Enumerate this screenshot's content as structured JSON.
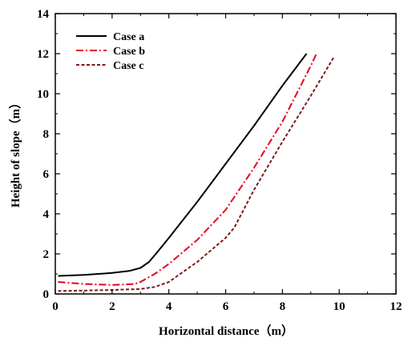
{
  "chart_data": {
    "type": "line",
    "xlabel": "Horizontal distance（m）",
    "ylabel": "Height of slope（m）",
    "xlim": [
      0,
      12
    ],
    "ylim": [
      0,
      14
    ],
    "xticks": [
      "0",
      "2",
      "4",
      "6",
      "8",
      "10",
      "12"
    ],
    "yticks": [
      "0",
      "2",
      "4",
      "6",
      "8",
      "10",
      "12",
      "14"
    ],
    "grid": false,
    "legend_position": "top-left",
    "series": [
      {
        "name": "Case a",
        "color": "#000000",
        "dash": "solid",
        "x": [
          0.1,
          1.0,
          2.0,
          2.6,
          3.0,
          3.3,
          3.6,
          4.0,
          5.0,
          6.0,
          7.0,
          8.0,
          8.85
        ],
        "y": [
          0.9,
          0.95,
          1.05,
          1.15,
          1.3,
          1.6,
          2.1,
          2.8,
          4.6,
          6.5,
          8.4,
          10.4,
          12.0
        ]
      },
      {
        "name": "Case b",
        "color": "#e8001c",
        "dash": "dashdot",
        "x": [
          0.1,
          1.0,
          2.0,
          2.8,
          3.0,
          3.5,
          4.0,
          5.0,
          6.0,
          7.0,
          8.0,
          9.0,
          9.2
        ],
        "y": [
          0.6,
          0.5,
          0.45,
          0.5,
          0.6,
          1.0,
          1.5,
          2.7,
          4.2,
          6.3,
          8.6,
          11.4,
          12.0
        ]
      },
      {
        "name": "Case c",
        "color": "#7a1a1a",
        "dash": "dash",
        "x": [
          0.1,
          1.0,
          2.0,
          3.0,
          3.5,
          4.0,
          5.0,
          6.0,
          6.3,
          7.0,
          8.0,
          9.0,
          9.8
        ],
        "y": [
          0.15,
          0.17,
          0.2,
          0.25,
          0.35,
          0.6,
          1.6,
          2.8,
          3.3,
          5.2,
          7.6,
          9.9,
          11.8
        ]
      }
    ]
  }
}
